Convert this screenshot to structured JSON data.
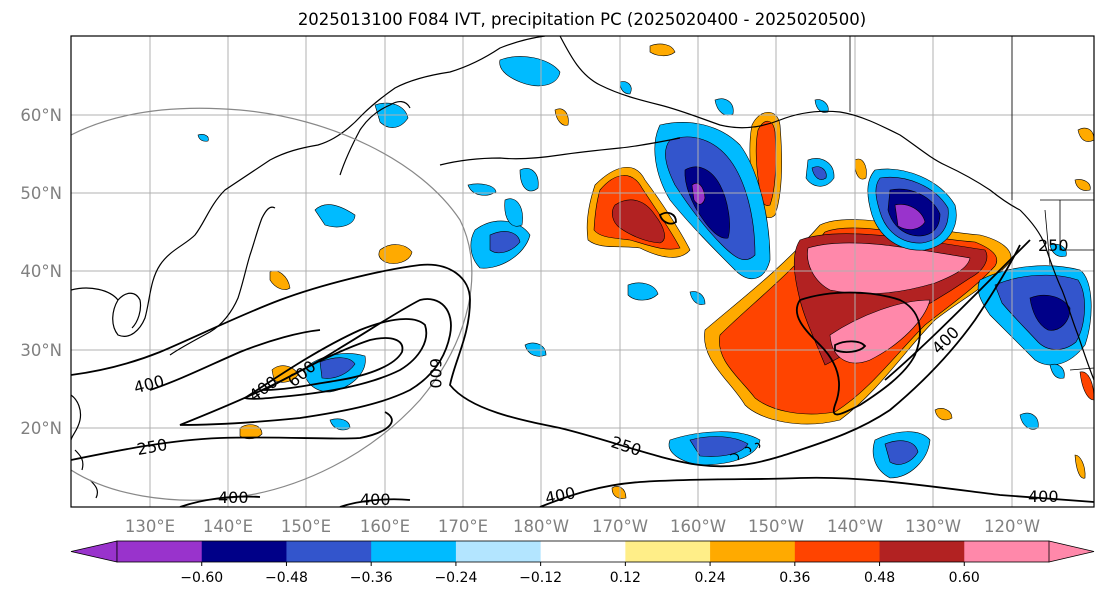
{
  "title": "2025013100 F084 IVT, precipitation PC (2025020400 - 2025020500)",
  "map": {
    "lat_labels": [
      "60°N",
      "50°N",
      "40°N",
      "30°N",
      "20°N"
    ],
    "lon_labels": [
      "130°E",
      "140°E",
      "150°E",
      "160°E",
      "170°E",
      "180°W",
      "170°W",
      "160°W",
      "150°W",
      "140°W",
      "130°W",
      "120°W"
    ],
    "contour_labels": [
      {
        "text": "250",
        "key": "a"
      },
      {
        "text": "250",
        "key": "b"
      },
      {
        "text": "250",
        "key": "c"
      },
      {
        "text": "400",
        "key": "d"
      },
      {
        "text": "400",
        "key": "e"
      },
      {
        "text": "400",
        "key": "f"
      },
      {
        "text": "400",
        "key": "g"
      },
      {
        "text": "400",
        "key": "h"
      },
      {
        "text": "400",
        "key": "i"
      },
      {
        "text": "400",
        "key": "j"
      },
      {
        "text": "600",
        "key": "k"
      },
      {
        "text": "600",
        "key": "l"
      }
    ]
  },
  "colorbar": {
    "colors": [
      "#9933cc",
      "#000088",
      "#3355cc",
      "#00bbff",
      "#b3e5ff",
      "#ffffff",
      "#ffee88",
      "#ffaa00",
      "#ff4400",
      "#b22222",
      "#ff88aa"
    ],
    "ticks": [
      "−0.60",
      "−0.48",
      "−0.36",
      "−0.24",
      "−0.12",
      "0.12",
      "0.24",
      "0.36",
      "0.48",
      "0.60"
    ]
  }
}
